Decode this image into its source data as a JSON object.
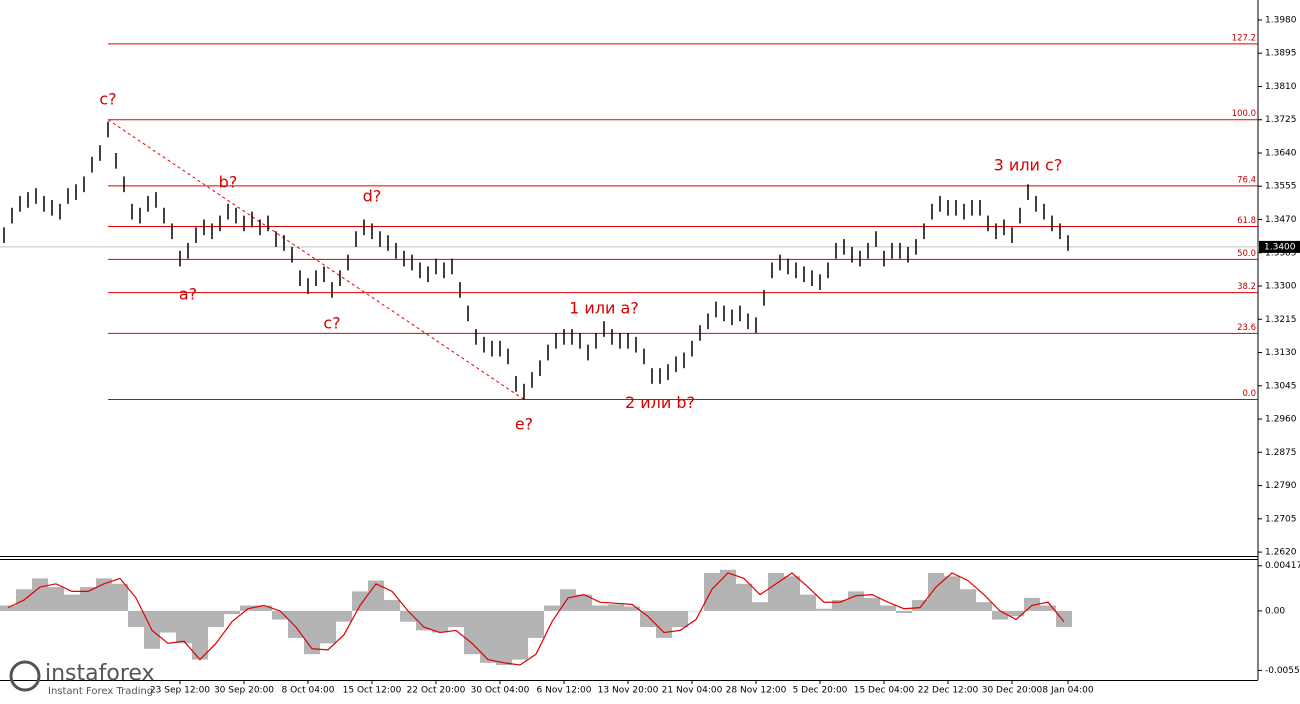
{
  "chart_data": {
    "type": "hilo",
    "color": "#000000",
    "categories": [
      null,
      null,
      null,
      null,
      null,
      null,
      null,
      null,
      null,
      null,
      null,
      null,
      null,
      null,
      null,
      null,
      null,
      null,
      null,
      null,
      null,
      null,
      "23 Sep 12:00",
      null,
      null,
      null,
      null,
      null,
      null,
      null,
      "30 Sep 20:00",
      null,
      null,
      null,
      null,
      null,
      null,
      null,
      "8 Oct 04:00",
      null,
      null,
      null,
      null,
      null,
      null,
      null,
      "15 Oct 12:00",
      null,
      null,
      null,
      null,
      null,
      null,
      null,
      "22 Oct 20:00",
      null,
      null,
      null,
      null,
      null,
      null,
      null,
      "30 Oct 04:00",
      null,
      null,
      null,
      null,
      null,
      null,
      null,
      "6 Nov 12:00",
      null,
      null,
      null,
      null,
      null,
      null,
      null,
      "13 Nov 20:00",
      null,
      null,
      null,
      null,
      null,
      null,
      null,
      "21 Nov 04:00",
      null,
      null,
      null,
      null,
      null,
      null,
      null,
      "28 Nov 12:00",
      null,
      null,
      null,
      null,
      null,
      null,
      null,
      "5 Dec 20:00",
      null,
      null,
      null,
      null,
      null,
      null,
      null,
      "15 Dec 04:00",
      null,
      null,
      null,
      null,
      null,
      null,
      null,
      "22 Dec 12:00",
      null,
      null,
      null,
      null,
      null,
      null,
      null,
      "30 Dec 20:00",
      null,
      null,
      null,
      null,
      null,
      null,
      "8 Jan 04:00"
    ],
    "high": [
      1.345,
      1.35,
      1.353,
      1.354,
      1.355,
      1.353,
      1.352,
      1.351,
      1.355,
      1.356,
      1.358,
      1.363,
      1.366,
      1.372,
      1.364,
      1.358,
      1.351,
      1.35,
      1.353,
      1.354,
      1.35,
      1.346,
      1.339,
      1.341,
      1.345,
      1.347,
      1.346,
      1.348,
      1.351,
      1.35,
      1.348,
      1.349,
      1.347,
      1.348,
      1.344,
      1.343,
      1.34,
      1.334,
      1.332,
      1.334,
      1.335,
      1.331,
      1.334,
      1.338,
      1.344,
      1.347,
      1.346,
      1.344,
      1.343,
      1.341,
      1.339,
      1.338,
      1.336,
      1.335,
      1.337,
      1.336,
      1.337,
      1.331,
      1.325,
      1.319,
      1.317,
      1.316,
      1.316,
      1.314,
      1.307,
      1.305,
      1.308,
      1.311,
      1.315,
      1.318,
      1.319,
      1.319,
      1.318,
      1.315,
      1.318,
      1.321,
      1.319,
      1.318,
      1.318,
      1.317,
      1.314,
      1.309,
      1.309,
      1.31,
      1.312,
      1.313,
      1.316,
      1.32,
      1.323,
      1.326,
      1.325,
      1.324,
      1.325,
      1.323,
      1.322,
      1.329,
      1.336,
      1.338,
      1.337,
      1.336,
      1.335,
      1.334,
      1.333,
      1.336,
      1.341,
      1.342,
      1.34,
      1.339,
      1.341,
      1.344,
      1.339,
      1.341,
      1.341,
      1.34,
      1.342,
      1.346,
      1.351,
      1.353,
      1.352,
      1.352,
      1.351,
      1.352,
      1.352,
      1.348,
      1.346,
      1.347,
      1.345,
      1.35,
      1.356,
      1.353,
      1.351,
      1.348,
      1.346,
      1.343
    ],
    "low": [
      1.341,
      1.346,
      1.349,
      1.35,
      1.351,
      1.349,
      1.348,
      1.347,
      1.351,
      1.352,
      1.354,
      1.359,
      1.362,
      1.368,
      1.36,
      1.354,
      1.347,
      1.346,
      1.349,
      1.35,
      1.346,
      1.342,
      1.335,
      1.337,
      1.341,
      1.343,
      1.342,
      1.344,
      1.347,
      1.346,
      1.344,
      1.345,
      1.343,
      1.344,
      1.34,
      1.339,
      1.336,
      1.33,
      1.328,
      1.33,
      1.331,
      1.327,
      1.33,
      1.334,
      1.34,
      1.343,
      1.342,
      1.34,
      1.339,
      1.337,
      1.335,
      1.334,
      1.332,
      1.331,
      1.333,
      1.332,
      1.333,
      1.327,
      1.321,
      1.315,
      1.313,
      1.312,
      1.312,
      1.31,
      1.303,
      1.301,
      1.304,
      1.307,
      1.311,
      1.314,
      1.315,
      1.315,
      1.314,
      1.311,
      1.314,
      1.317,
      1.315,
      1.314,
      1.314,
      1.313,
      1.31,
      1.305,
      1.305,
      1.306,
      1.308,
      1.309,
      1.312,
      1.316,
      1.319,
      1.322,
      1.321,
      1.32,
      1.321,
      1.319,
      1.318,
      1.325,
      1.332,
      1.334,
      1.333,
      1.332,
      1.331,
      1.33,
      1.329,
      1.332,
      1.337,
      1.338,
      1.336,
      1.335,
      1.337,
      1.34,
      1.335,
      1.337,
      1.337,
      1.336,
      1.338,
      1.342,
      1.347,
      1.349,
      1.348,
      1.348,
      1.347,
      1.348,
      1.348,
      1.344,
      1.342,
      1.343,
      1.341,
      1.346,
      1.352,
      1.349,
      1.347,
      1.344,
      1.342,
      1.339
    ],
    "ylim": [
      1.261,
      1.4031
    ],
    "yticks": [
      {
        "value": 1.398,
        "label": "1.3980"
      },
      {
        "value": 1.3895,
        "label": "1.3895"
      },
      {
        "value": 1.381,
        "label": "1.3810"
      },
      {
        "value": 1.3725,
        "label": "1.3725"
      },
      {
        "value": 1.364,
        "label": "1.3640"
      },
      {
        "value": 1.3555,
        "label": "1.3555"
      },
      {
        "value": 1.347,
        "label": "1.3470"
      },
      {
        "value": 1.3385,
        "label": "1.3385"
      },
      {
        "value": 1.33,
        "label": "1.3300"
      },
      {
        "value": 1.3215,
        "label": "1.3215"
      },
      {
        "value": 1.313,
        "label": "1.3130"
      },
      {
        "value": 1.3045,
        "label": "1.3045"
      },
      {
        "value": 1.296,
        "label": "1.2960"
      },
      {
        "value": 1.2875,
        "label": "1.2875"
      },
      {
        "value": 1.279,
        "label": "1.2790"
      },
      {
        "value": 1.2705,
        "label": "1.2705"
      },
      {
        "value": 1.262,
        "label": "1.2620"
      }
    ],
    "last_price": {
      "value": 1.34,
      "label": "1.3400"
    },
    "fib_color": "#e00000",
    "fib_levels": [
      {
        "value": 1.301,
        "label": "0.0"
      },
      {
        "value": 1.3179,
        "label": "23.6"
      },
      {
        "value": 1.3283,
        "label": "38.2"
      },
      {
        "value": 1.3368,
        "label": "50.0"
      },
      {
        "value": 1.3452,
        "label": "61.8"
      },
      {
        "value": 1.3556,
        "label": "76.4"
      },
      {
        "value": 1.3725,
        "label": "100.0"
      },
      {
        "value": 1.3919,
        "label": "127.2"
      }
    ],
    "trend_line": {
      "from": [
        13,
        1.3725
      ],
      "to": [
        65,
        1.301
      ]
    },
    "annotations": [
      {
        "text": "c?",
        "x": 13,
        "y": 1.3776
      },
      {
        "text": "b?",
        "x": 28,
        "y": 1.3563
      },
      {
        "text": "d?",
        "x": 46,
        "y": 1.3528
      },
      {
        "text": "a?",
        "x": 23,
        "y": 1.3277
      },
      {
        "text": "c?",
        "x": 41,
        "y": 1.3203
      },
      {
        "text": "e?",
        "x": 65,
        "y": 1.2945
      },
      {
        "text": "1 или a?",
        "x": 75,
        "y": 1.3241
      },
      {
        "text": "2 или b?",
        "x": 82,
        "y": 1.3
      },
      {
        "text": "3 или c?",
        "x": 128,
        "y": 1.3607
      }
    ],
    "oscillator": {
      "color": "#b4b4b4",
      "signal_color": "#e00000",
      "ylim": [
        -0.0062,
        0.0047
      ],
      "yticks": [
        0.00417,
        {
          "value": 0,
          "label": "0.00"
        },
        -0.0055
      ],
      "values": [
        0.0005,
        0.002,
        0.003,
        0.0022,
        0.0015,
        0.0022,
        0.003,
        0.0025,
        -0.0015,
        -0.0035,
        -0.002,
        -0.003,
        -0.0045,
        -0.0015,
        -0.0003,
        0.0005,
        0.0005,
        -0.0008,
        -0.0025,
        -0.004,
        -0.003,
        -0.001,
        0.0018,
        0.0028,
        0.001,
        -0.001,
        -0.0018,
        -0.002,
        -0.0015,
        -0.004,
        -0.0048,
        -0.005,
        -0.0045,
        -0.0025,
        0.0005,
        0.002,
        0.0015,
        0.0005,
        0.0006,
        0.0004,
        -0.0015,
        -0.0025,
        -0.0015,
        0.0,
        0.0035,
        0.0038,
        0.0025,
        0.0008,
        0.0035,
        0.0032,
        0.0015,
        0.0002,
        0.001,
        0.0018,
        0.0012,
        0.0005,
        -0.0002,
        0.001,
        0.0035,
        0.0032,
        0.002,
        0.0008,
        -0.0008,
        -0.0005,
        0.0012,
        0.0005,
        -0.0015
      ],
      "signal": [
        0.0003,
        0.001,
        0.0022,
        0.0025,
        0.0018,
        0.0018,
        0.0025,
        0.003,
        0.0012,
        -0.0018,
        -0.003,
        -0.0028,
        -0.0045,
        -0.003,
        -0.001,
        0.0002,
        0.0005,
        0.0,
        -0.0015,
        -0.0035,
        -0.0036,
        -0.0022,
        0.0005,
        0.0025,
        0.0018,
        0.0,
        -0.0015,
        -0.002,
        -0.0018,
        -0.003,
        -0.0045,
        -0.0048,
        -0.005,
        -0.004,
        -0.001,
        0.0012,
        0.0015,
        0.0008,
        0.0007,
        0.0006,
        -0.0005,
        -0.002,
        -0.0018,
        -0.0008,
        0.002,
        0.0035,
        0.003,
        0.0015,
        0.0025,
        0.0035,
        0.0022,
        0.0008,
        0.0008,
        0.0014,
        0.0015,
        0.0008,
        0.0002,
        0.0003,
        0.0022,
        0.0035,
        0.0028,
        0.0015,
        0.0,
        -0.0008,
        0.0005,
        0.0008,
        -0.001
      ]
    },
    "watermark": {
      "brand": "instaforex",
      "tagline": "Instant Forex Trading"
    }
  }
}
